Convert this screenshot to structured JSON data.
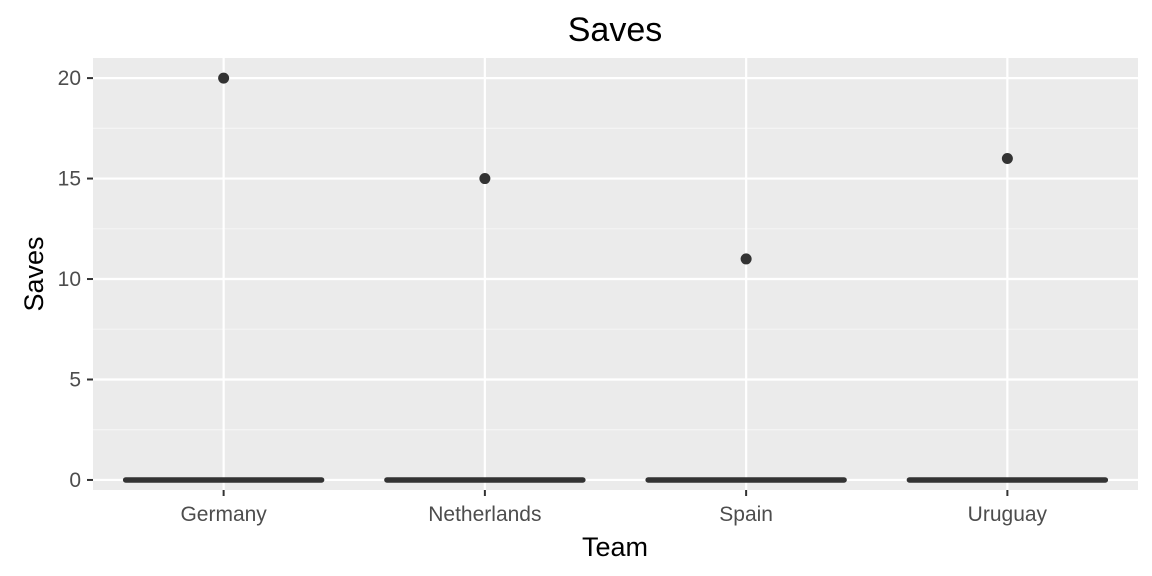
{
  "chart_data": {
    "type": "boxplot",
    "title": "Saves",
    "xlabel": "Team",
    "ylabel": "Saves",
    "categories": [
      "Germany",
      "Netherlands",
      "Spain",
      "Uruguay"
    ],
    "boxes": [
      {
        "team": "Germany",
        "min": 0,
        "q1": 0,
        "median": 0,
        "q3": 0,
        "max": 0,
        "outliers": [
          20
        ]
      },
      {
        "team": "Netherlands",
        "min": 0,
        "q1": 0,
        "median": 0,
        "q3": 0,
        "max": 0,
        "outliers": [
          15
        ]
      },
      {
        "team": "Spain",
        "min": 0,
        "q1": 0,
        "median": 0,
        "q3": 0,
        "max": 0,
        "outliers": [
          11
        ]
      },
      {
        "team": "Uruguay",
        "min": 0,
        "q1": 0,
        "median": 0,
        "q3": 0,
        "max": 0,
        "outliers": [
          16
        ]
      }
    ],
    "yticks": [
      0,
      5,
      10,
      15,
      20
    ],
    "ylim": [
      -0.5,
      21
    ],
    "grid": true,
    "colors": {
      "panel_background": "#ebebeb",
      "grid_major": "#ffffff",
      "grid_minor": "#f5f5f5",
      "marks": "#333333",
      "tick_text": "#4d4d4d",
      "tick_line": "#333333"
    }
  }
}
